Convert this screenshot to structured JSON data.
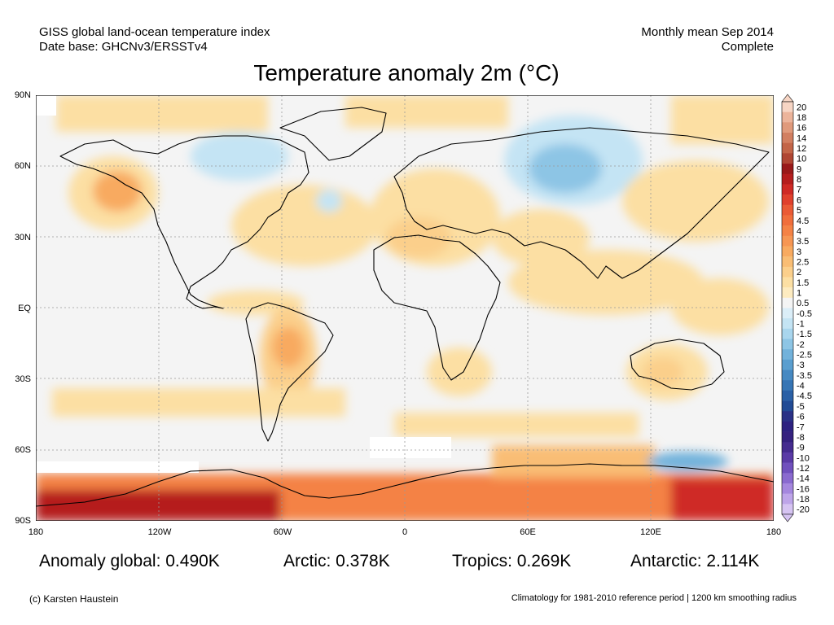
{
  "header": {
    "left_line1": "GISS global land-ocean temperature index",
    "left_line2": "Date base: GHCNv3/ERSSTv4",
    "right_line1": "Monthly mean Sep 2014",
    "right_line2": "Complete"
  },
  "title": "Temperature anomaly 2m (°C)",
  "axes": {
    "lat_labels": [
      "90N",
      "60N",
      "30N",
      "EQ",
      "30S",
      "60S",
      "90S"
    ],
    "lon_labels": [
      "180",
      "120W",
      "60W",
      "0",
      "60E",
      "120E",
      "180"
    ]
  },
  "stats": {
    "global": "Anomaly global: 0.490K",
    "arctic": "Arctic: 0.378K",
    "tropics": "Tropics: 0.269K",
    "antarctic": "Antarctic: 2.114K"
  },
  "footer": {
    "left": "(c) Karsten Haustein",
    "right": "Climatology for 1981-2010 reference period | 1200 km smoothing radius"
  },
  "colorbar": {
    "labels": [
      "20",
      "18",
      "16",
      "14",
      "12",
      "10",
      "9",
      "8",
      "7",
      "6",
      "5",
      "4.5",
      "4",
      "3.5",
      "3",
      "2.5",
      "2",
      "1.5",
      "1",
      "0.5",
      "-0.5",
      "-1",
      "-1.5",
      "-2",
      "-2.5",
      "-3",
      "-3.5",
      "-4",
      "-4.5",
      "-5",
      "-6",
      "-7",
      "-8",
      "-9",
      "-10",
      "-12",
      "-14",
      "-16",
      "-18",
      "-20"
    ],
    "colors": [
      "#f7d5c4",
      "#ecb49b",
      "#e09a7c",
      "#d27f61",
      "#c36548",
      "#b04633",
      "#991a1a",
      "#b51e1e",
      "#cf2a25",
      "#e0402c",
      "#ea5a35",
      "#f06e3c",
      "#f48245",
      "#f69653",
      "#f8aa60",
      "#f9bd74",
      "#fbcf8b",
      "#fcdfa3",
      "#fdebc0",
      "#f4f4f4",
      "#dbeef8",
      "#c4e4f4",
      "#a9d6ee",
      "#8dc5e5",
      "#72b2db",
      "#5a9ecf",
      "#4689c2",
      "#3675b5",
      "#2a60a6",
      "#224b95",
      "#2a3186",
      "#2d2180",
      "#35217f",
      "#452b8f",
      "#5a3aa6",
      "#7050bd",
      "#8a6acf",
      "#a587de",
      "#bea5e9",
      "#d6c4f2"
    ]
  }
}
